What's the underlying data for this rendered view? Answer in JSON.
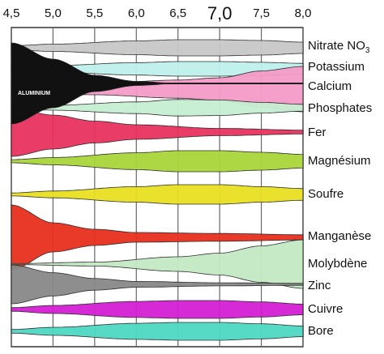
{
  "chart_data": {
    "type": "area",
    "x_ticks": [
      {
        "value": 4.5,
        "label": "4,5"
      },
      {
        "value": 5.0,
        "label": "5,0"
      },
      {
        "value": 5.5,
        "label": "5,5"
      },
      {
        "value": 6.0,
        "label": "6,0"
      },
      {
        "value": 6.5,
        "label": "6,5"
      },
      {
        "value": 7.0,
        "label": "7,0",
        "emphasis": true
      },
      {
        "value": 7.5,
        "label": "7,5"
      },
      {
        "value": 8.0,
        "label": "8,0"
      }
    ],
    "xlim": [
      4.5,
      8.0
    ],
    "grid": true,
    "series": [
      {
        "name": "Nitrate",
        "sub": "NO3",
        "color": "#c8c8c8",
        "availability": [
          [
            4.5,
            0.25
          ],
          [
            5.0,
            0.45
          ],
          [
            6.0,
            0.85
          ],
          [
            6.5,
            1.0
          ],
          [
            7.0,
            1.0
          ],
          [
            7.5,
            0.9
          ],
          [
            8.0,
            0.7
          ]
        ]
      },
      {
        "name": "Potassium",
        "color": "#bff0ec",
        "availability": [
          [
            4.5,
            0.25
          ],
          [
            5.0,
            0.45
          ],
          [
            6.0,
            0.85
          ],
          [
            6.5,
            1.0
          ],
          [
            7.0,
            1.0
          ],
          [
            7.5,
            0.9
          ],
          [
            8.0,
            0.75
          ]
        ]
      },
      {
        "name": "Calcium",
        "color": "#f59bc8",
        "availability": [
          [
            4.5,
            0.15
          ],
          [
            5.5,
            0.25
          ],
          [
            6.5,
            0.4
          ],
          [
            7.0,
            0.5
          ],
          [
            7.5,
            0.8
          ],
          [
            8.0,
            1.0
          ]
        ]
      },
      {
        "name": "Phosphates",
        "color": "#c6efd2",
        "availability": [
          [
            4.5,
            0.15
          ],
          [
            5.0,
            0.25
          ],
          [
            6.0,
            0.6
          ],
          [
            6.5,
            0.85
          ],
          [
            7.0,
            0.8
          ],
          [
            7.5,
            0.55
          ],
          [
            8.0,
            0.35
          ]
        ]
      },
      {
        "name": "Aluminium",
        "label": "ALUMINIUM",
        "color": "#111111",
        "availability": [
          [
            4.5,
            1.0
          ],
          [
            5.0,
            0.6
          ],
          [
            5.5,
            0.2
          ],
          [
            6.0,
            0.05
          ],
          [
            6.5,
            0.0
          ]
        ]
      },
      {
        "name": "Fer",
        "color": "#e8325e",
        "availability": [
          [
            4.5,
            1.0
          ],
          [
            5.0,
            0.7
          ],
          [
            5.5,
            0.45
          ],
          [
            6.0,
            0.3
          ],
          [
            7.0,
            0.15
          ],
          [
            8.0,
            0.08
          ]
        ]
      },
      {
        "name": "Magnésium",
        "color": "#a9d63a",
        "availability": [
          [
            4.5,
            0.15
          ],
          [
            5.0,
            0.35
          ],
          [
            6.0,
            0.8
          ],
          [
            6.5,
            1.0
          ],
          [
            7.0,
            1.0
          ],
          [
            7.5,
            0.85
          ],
          [
            8.0,
            0.65
          ]
        ]
      },
      {
        "name": "Soufre",
        "color": "#e8e020",
        "availability": [
          [
            4.5,
            0.15
          ],
          [
            5.0,
            0.35
          ],
          [
            6.0,
            0.8
          ],
          [
            6.5,
            1.0
          ],
          [
            7.0,
            1.0
          ],
          [
            7.5,
            0.8
          ],
          [
            8.0,
            0.6
          ]
        ]
      },
      {
        "name": "Manganèse",
        "color": "#e8301e",
        "availability": [
          [
            4.5,
            1.0
          ],
          [
            5.0,
            0.45
          ],
          [
            5.5,
            0.25
          ],
          [
            6.0,
            0.15
          ],
          [
            7.0,
            0.12
          ],
          [
            8.0,
            0.08
          ]
        ]
      },
      {
        "name": "Molybdène",
        "color": "#c3e9c4",
        "availability": [
          [
            4.5,
            0.02
          ],
          [
            5.5,
            0.08
          ],
          [
            6.5,
            0.3
          ],
          [
            7.0,
            0.45
          ],
          [
            7.5,
            0.75
          ],
          [
            8.0,
            1.0
          ]
        ]
      },
      {
        "name": "Zinc",
        "color": "#888888",
        "availability": [
          [
            4.5,
            1.0
          ],
          [
            5.0,
            0.6
          ],
          [
            5.5,
            0.3
          ],
          [
            6.0,
            0.15
          ],
          [
            7.0,
            0.08
          ],
          [
            8.0,
            0.05
          ]
        ]
      },
      {
        "name": "Cuivre",
        "color": "#d41fd4",
        "availability": [
          [
            4.5,
            0.2
          ],
          [
            5.0,
            0.45
          ],
          [
            6.0,
            0.9
          ],
          [
            6.5,
            1.0
          ],
          [
            7.0,
            1.0
          ],
          [
            7.5,
            0.85
          ],
          [
            8.0,
            0.6
          ]
        ]
      },
      {
        "name": "Bore",
        "color": "#4ed9c3",
        "availability": [
          [
            4.5,
            0.2
          ],
          [
            5.0,
            0.45
          ],
          [
            6.0,
            0.9
          ],
          [
            6.5,
            1.0
          ],
          [
            7.0,
            1.0
          ],
          [
            7.5,
            0.85
          ],
          [
            8.0,
            0.6
          ]
        ]
      }
    ]
  }
}
